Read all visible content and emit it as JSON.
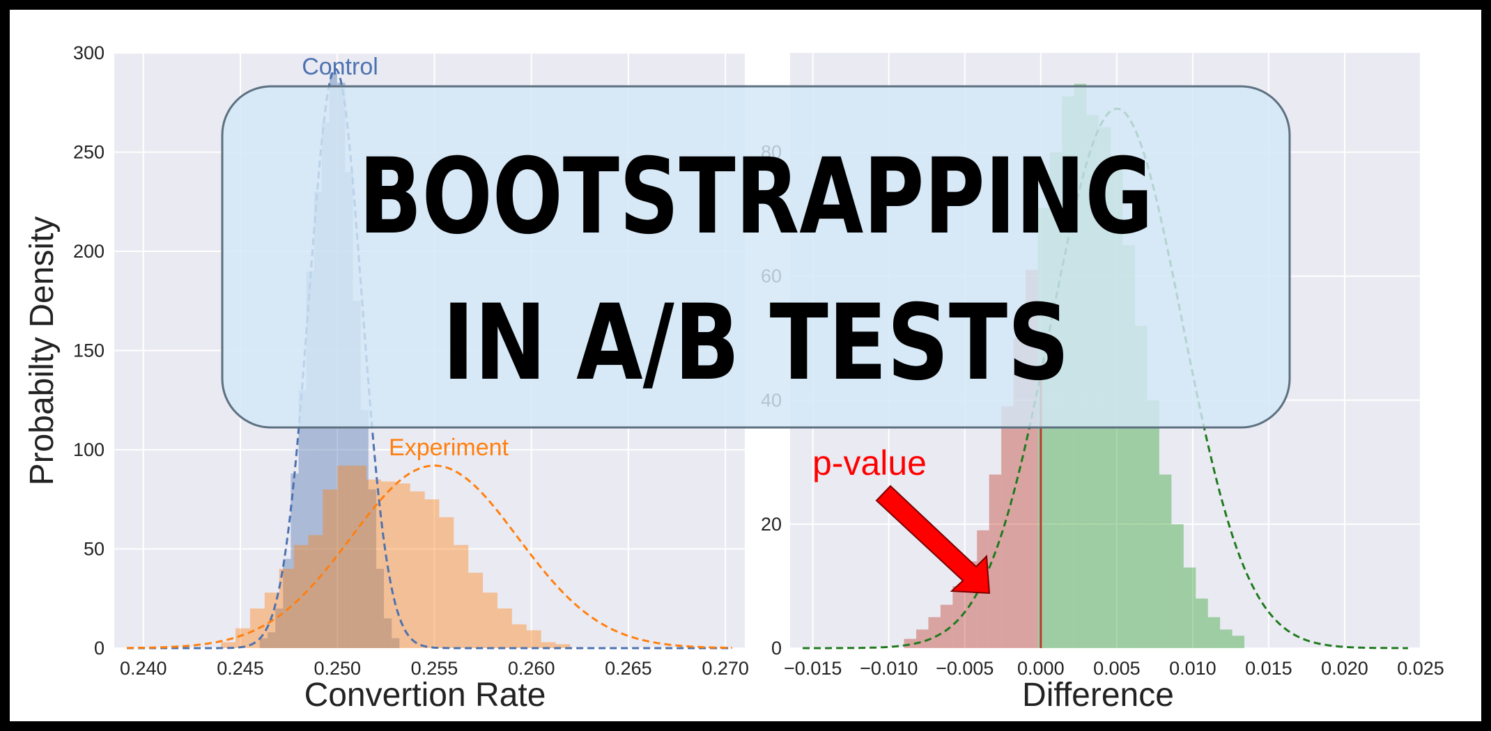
{
  "title_lines": [
    "BOOTSTRAPPING",
    "IN A/B TESTS"
  ],
  "colors": {
    "control": "#4C72B0",
    "experiment": "#FF7F0E",
    "difference": "#2CA02C",
    "pvalue_fill": "#C0392B",
    "pvalue_text": "#FF0000",
    "panel_bg": "#EAEAF2",
    "banner": "#CFE6F5"
  },
  "chart_data": [
    {
      "type": "histogram",
      "xlabel": "Convertion Rate",
      "ylabel": "Probabilty Density",
      "xlim": [
        0.2385,
        0.271
      ],
      "ylim": [
        0,
        300
      ],
      "xticks": [
        "0.240",
        "0.245",
        "0.250",
        "0.255",
        "0.260",
        "0.265",
        "0.270"
      ],
      "xtick_values": [
        0.24,
        0.245,
        0.25,
        0.255,
        0.26,
        0.265,
        0.27
      ],
      "yticks": [
        "0",
        "50",
        "100",
        "150",
        "200",
        "250",
        "300"
      ],
      "ytick_values": [
        0,
        50,
        100,
        150,
        200,
        250,
        300
      ],
      "grid": true,
      "series": [
        {
          "name": "Control",
          "bin_start": 0.246,
          "bin_width": 0.0004,
          "values": [
            5,
            8,
            20,
            45,
            88,
            130,
            190,
            230,
            265,
            290,
            285,
            240,
            175,
            120,
            80,
            40,
            15,
            5
          ],
          "fit": {
            "mean": 0.2499,
            "sd": 0.00136,
            "peak": 292
          }
        },
        {
          "name": "Experiment",
          "bin_start": 0.244,
          "bin_width": 0.00075,
          "values": [
            3,
            10,
            20,
            28,
            40,
            52,
            57,
            80,
            92,
            92,
            85,
            84,
            83,
            79,
            75,
            66,
            52,
            38,
            28,
            20,
            12,
            9,
            3,
            2
          ],
          "fit": {
            "mean": 0.255,
            "sd": 0.0043,
            "peak": 92
          }
        }
      ]
    },
    {
      "type": "histogram",
      "xlabel": "Difference",
      "xlim": [
        -0.0165,
        0.025
      ],
      "ylim": [
        0,
        96
      ],
      "xticks": [
        "−0.015",
        "−0.010",
        "−0.005",
        "0.000",
        "0.005",
        "0.010",
        "0.015",
        "0.020",
        "0.025"
      ],
      "xtick_values": [
        -0.015,
        -0.01,
        -0.005,
        0.0,
        0.005,
        0.01,
        0.015,
        0.02,
        0.025
      ],
      "yticks": [
        "0",
        "20",
        "40",
        "60",
        "80"
      ],
      "ytick_values": [
        0,
        20,
        40,
        60,
        80
      ],
      "grid": true,
      "series": [
        {
          "name": "Difference",
          "bin_start": -0.009,
          "bin_width": 0.0008,
          "values": [
            1.5,
            3,
            5,
            7,
            10,
            14,
            19,
            28,
            39,
            50,
            61,
            71,
            80,
            89,
            91,
            86,
            84,
            79,
            65,
            52,
            40,
            28,
            20,
            13,
            8,
            5,
            3,
            2
          ],
          "fit": {
            "mean": 0.005,
            "sd": 0.0043,
            "peak": 87
          }
        }
      ],
      "pvalue_threshold": 0.0,
      "annotation": "p-value"
    }
  ]
}
